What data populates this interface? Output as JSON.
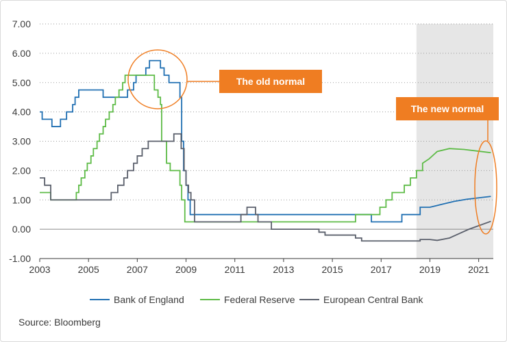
{
  "chart_data": {
    "type": "line",
    "title": "",
    "xlabel": "",
    "ylabel": "",
    "xlim": [
      2003,
      2021.6
    ],
    "ylim": [
      -1.0,
      7.0
    ],
    "x_ticks": [
      2003,
      2005,
      2007,
      2009,
      2011,
      2013,
      2015,
      2017,
      2019,
      2021
    ],
    "y_ticks": [
      -1.0,
      0.0,
      1.0,
      2.0,
      3.0,
      4.0,
      5.0,
      6.0,
      7.0
    ],
    "y_tick_labels": [
      "-1.00",
      "0.00",
      "1.00",
      "2.00",
      "3.00",
      "4.00",
      "5.00",
      "6.00",
      "7.00"
    ],
    "grid": "horizontal dotted",
    "legend_position": "bottom",
    "shaded_region": {
      "x_from": 2018.45,
      "x_to": 2021.6,
      "color": "#e6e6e6"
    },
    "series": [
      {
        "name": "Bank of England",
        "color": "#1f6fb2",
        "points": [
          [
            2003.0,
            4.0
          ],
          [
            2003.1,
            3.75
          ],
          [
            2003.5,
            3.5
          ],
          [
            2003.85,
            3.75
          ],
          [
            2004.1,
            4.0
          ],
          [
            2004.35,
            4.25
          ],
          [
            2004.45,
            4.5
          ],
          [
            2004.6,
            4.75
          ],
          [
            2005.6,
            4.5
          ],
          [
            2006.6,
            4.75
          ],
          [
            2006.85,
            5.0
          ],
          [
            2006.95,
            5.25
          ],
          [
            2007.35,
            5.5
          ],
          [
            2007.5,
            5.75
          ],
          [
            2007.95,
            5.5
          ],
          [
            2008.1,
            5.25
          ],
          [
            2008.3,
            5.0
          ],
          [
            2008.75,
            4.5
          ],
          [
            2008.82,
            3.0
          ],
          [
            2008.9,
            2.0
          ],
          [
            2009.0,
            1.5
          ],
          [
            2009.08,
            1.0
          ],
          [
            2009.17,
            0.5
          ],
          [
            2016.6,
            0.25
          ],
          [
            2017.85,
            0.5
          ],
          [
            2018.6,
            0.75
          ],
          [
            2019.0,
            0.75
          ],
          [
            2019.5,
            0.85
          ],
          [
            2020.0,
            0.95
          ],
          [
            2020.5,
            1.02
          ],
          [
            2021.0,
            1.07
          ],
          [
            2021.5,
            1.12
          ]
        ]
      },
      {
        "name": "Federal Reserve",
        "color": "#5dbb46",
        "points": [
          [
            2003.0,
            1.25
          ],
          [
            2003.45,
            1.0
          ],
          [
            2004.5,
            1.25
          ],
          [
            2004.6,
            1.5
          ],
          [
            2004.7,
            1.75
          ],
          [
            2004.85,
            2.0
          ],
          [
            2004.95,
            2.25
          ],
          [
            2005.1,
            2.5
          ],
          [
            2005.2,
            2.75
          ],
          [
            2005.35,
            3.0
          ],
          [
            2005.45,
            3.25
          ],
          [
            2005.6,
            3.5
          ],
          [
            2005.7,
            3.75
          ],
          [
            2005.85,
            4.0
          ],
          [
            2006.0,
            4.25
          ],
          [
            2006.1,
            4.5
          ],
          [
            2006.25,
            4.75
          ],
          [
            2006.4,
            5.0
          ],
          [
            2006.5,
            5.25
          ],
          [
            2007.7,
            4.75
          ],
          [
            2007.85,
            4.5
          ],
          [
            2007.95,
            4.25
          ],
          [
            2008.0,
            3.0
          ],
          [
            2008.05,
            3.0
          ],
          [
            2008.2,
            2.25
          ],
          [
            2008.35,
            2.0
          ],
          [
            2008.75,
            1.5
          ],
          [
            2008.82,
            1.0
          ],
          [
            2008.95,
            0.25
          ],
          [
            2015.95,
            0.5
          ],
          [
            2016.95,
            0.75
          ],
          [
            2017.2,
            1.0
          ],
          [
            2017.45,
            1.25
          ],
          [
            2017.95,
            1.5
          ],
          [
            2018.2,
            1.75
          ],
          [
            2018.45,
            2.0
          ],
          [
            2018.7,
            2.25
          ],
          [
            2018.97,
            2.4
          ],
          [
            2019.3,
            2.65
          ],
          [
            2019.8,
            2.75
          ],
          [
            2020.4,
            2.72
          ],
          [
            2021.0,
            2.66
          ],
          [
            2021.5,
            2.61
          ]
        ]
      },
      {
        "name": "European Central Bank",
        "color": "#5a5f6b",
        "points": [
          [
            2003.0,
            1.75
          ],
          [
            2003.2,
            1.5
          ],
          [
            2003.45,
            1.0
          ],
          [
            2005.93,
            1.25
          ],
          [
            2006.2,
            1.5
          ],
          [
            2006.45,
            1.75
          ],
          [
            2006.6,
            2.0
          ],
          [
            2006.85,
            2.25
          ],
          [
            2007.0,
            2.5
          ],
          [
            2007.2,
            2.75
          ],
          [
            2007.45,
            3.0
          ],
          [
            2008.5,
            3.25
          ],
          [
            2008.8,
            2.75
          ],
          [
            2008.92,
            2.0
          ],
          [
            2009.0,
            1.5
          ],
          [
            2009.1,
            1.25
          ],
          [
            2009.2,
            1.0
          ],
          [
            2009.35,
            0.25
          ],
          [
            2011.25,
            0.5
          ],
          [
            2011.5,
            0.75
          ],
          [
            2011.85,
            0.5
          ],
          [
            2011.95,
            0.25
          ],
          [
            2012.5,
            0.0
          ],
          [
            2014.45,
            -0.1
          ],
          [
            2014.7,
            -0.2
          ],
          [
            2015.95,
            -0.3
          ],
          [
            2016.2,
            -0.4
          ],
          [
            2018.6,
            -0.35
          ],
          [
            2019.0,
            -0.35
          ],
          [
            2019.3,
            -0.38
          ],
          [
            2019.8,
            -0.3
          ],
          [
            2020.2,
            -0.15
          ],
          [
            2020.6,
            0.0
          ],
          [
            2021.0,
            0.12
          ],
          [
            2021.5,
            0.27
          ]
        ]
      }
    ],
    "annotations": [
      {
        "text": "The old normal",
        "type": "circle",
        "x": 2007.6,
        "y": 4.7
      },
      {
        "text": "The new normal",
        "type": "ellipse",
        "x": 2021.4,
        "y": 1.35
      }
    ],
    "source_text": "Source: Bloomberg"
  }
}
